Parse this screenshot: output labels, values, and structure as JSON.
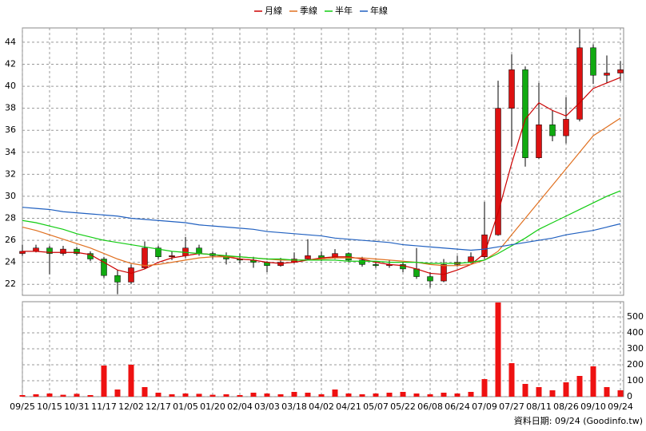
{
  "chart_data": [
    {
      "type": "candlestick",
      "categories": [
        "09/25",
        null,
        "10/15",
        null,
        "10/31",
        null,
        "11/17",
        null,
        "12/02",
        null,
        "12/17",
        null,
        "01/05",
        null,
        "01/20",
        null,
        "02/04",
        null,
        "03/03",
        null,
        "03/18",
        null,
        "04/02",
        null,
        "04/21",
        null,
        "05/07",
        null,
        "05/22",
        null,
        "06/08",
        null,
        "06/24",
        null,
        "07/09",
        null,
        "07/27",
        null,
        "08/11",
        null,
        "08/26",
        null,
        "09/10",
        null,
        "09/24"
      ],
      "open": [
        24.8,
        25.0,
        25.3,
        24.8,
        25.2,
        24.8,
        24.3,
        22.8,
        22.2,
        23.5,
        25.3,
        24.5,
        24.6,
        25.3,
        24.8,
        24.6,
        24.3,
        24.2,
        24.0,
        23.7,
        24.0,
        24.3,
        24.6,
        24.4,
        24.8,
        24.2,
        23.8,
        23.7,
        23.8,
        23.4,
        22.7,
        22.3,
        23.8,
        24.0,
        24.5,
        26.5,
        38.0,
        41.5,
        33.5,
        36.5,
        35.5,
        37.0,
        43.5,
        41.0,
        41.2
      ],
      "high": [
        25.6,
        25.6,
        25.5,
        25.5,
        25.4,
        25.0,
        24.5,
        23.3,
        23.8,
        25.9,
        25.5,
        25.0,
        26.3,
        25.6,
        25.0,
        24.9,
        24.8,
        24.5,
        24.1,
        24.4,
        24.9,
        26.1,
        25.0,
        25.2,
        24.9,
        24.5,
        24.1,
        24.2,
        24.0,
        25.3,
        23.1,
        24.3,
        24.6,
        24.9,
        29.5,
        40.5,
        42.9,
        41.8,
        40.3,
        37.8,
        39.0,
        45.2,
        43.8,
        42.8,
        42.3
      ],
      "low": [
        24.6,
        24.9,
        22.9,
        24.6,
        24.6,
        24.1,
        22.6,
        21.1,
        22.0,
        23.4,
        24.3,
        24.2,
        24.4,
        24.6,
        24.3,
        23.8,
        23.9,
        23.5,
        23.1,
        23.6,
        23.9,
        24.2,
        24.1,
        24.3,
        24.0,
        23.6,
        23.5,
        23.5,
        23.1,
        22.5,
        21.7,
        22.2,
        23.6,
        23.9,
        24.3,
        26.4,
        34.5,
        32.7,
        33.4,
        35.0,
        34.8,
        36.8,
        40.2,
        40.3,
        40.5
      ],
      "close": [
        25.0,
        25.3,
        24.8,
        25.2,
        24.8,
        24.3,
        22.8,
        22.2,
        23.5,
        25.3,
        24.5,
        24.6,
        25.3,
        24.8,
        24.6,
        24.3,
        24.2,
        24.0,
        23.7,
        24.0,
        24.3,
        24.6,
        24.4,
        24.8,
        24.2,
        23.8,
        23.7,
        23.8,
        23.4,
        22.7,
        22.3,
        23.8,
        24.0,
        24.5,
        26.5,
        38.0,
        41.5,
        33.5,
        36.5,
        35.5,
        37.0,
        43.5,
        41.0,
        41.2,
        41.5
      ],
      "up_color": "#dd1111",
      "down_color": "#11aa11",
      "series": [
        {
          "name": "月線",
          "color": "#cc0000",
          "values": [
            25.0,
            25.0,
            24.9,
            24.9,
            24.9,
            24.7,
            24.0,
            23.3,
            23.0,
            23.4,
            24.0,
            24.4,
            24.6,
            24.8,
            24.7,
            24.5,
            24.3,
            24.2,
            24.0,
            23.9,
            24.0,
            24.2,
            24.4,
            24.5,
            24.5,
            24.3,
            24.0,
            23.8,
            23.7,
            23.4,
            23.0,
            22.9,
            23.3,
            23.8,
            24.8,
            28.5,
            33.0,
            37.0,
            38.5,
            37.8,
            37.3,
            38.5,
            39.8,
            40.3,
            40.8
          ]
        },
        {
          "name": "季線",
          "color": "#e07020",
          "values": [
            27.2,
            26.9,
            26.5,
            26.1,
            25.7,
            25.3,
            24.8,
            24.3,
            23.9,
            23.7,
            23.8,
            24.0,
            24.2,
            24.4,
            24.5,
            24.5,
            24.5,
            24.4,
            24.3,
            24.2,
            24.2,
            24.2,
            24.3,
            24.4,
            24.4,
            24.4,
            24.3,
            24.2,
            24.1,
            24.0,
            23.8,
            23.7,
            23.7,
            23.8,
            24.2,
            25.0,
            26.5,
            28.0,
            29.5,
            31.0,
            32.5,
            34.0,
            35.5,
            36.3,
            37.1
          ]
        },
        {
          "name": "半年",
          "color": "#11cc11",
          "values": [
            27.8,
            27.6,
            27.3,
            27.0,
            26.6,
            26.3,
            26.0,
            25.8,
            25.6,
            25.4,
            25.2,
            25.0,
            24.9,
            24.8,
            24.7,
            24.6,
            24.5,
            24.4,
            24.3,
            24.3,
            24.2,
            24.2,
            24.2,
            24.2,
            24.1,
            24.1,
            24.1,
            24.0,
            24.0,
            24.0,
            23.9,
            23.9,
            23.9,
            24.0,
            24.2,
            24.8,
            25.5,
            26.2,
            27.0,
            27.6,
            28.2,
            28.8,
            29.4,
            30.0,
            30.5
          ]
        },
        {
          "name": "年線",
          "color": "#2060c0",
          "values": [
            29.0,
            28.9,
            28.8,
            28.6,
            28.5,
            28.4,
            28.3,
            28.2,
            28.0,
            27.9,
            27.8,
            27.7,
            27.6,
            27.4,
            27.3,
            27.2,
            27.1,
            27.0,
            26.8,
            26.7,
            26.6,
            26.5,
            26.4,
            26.2,
            26.1,
            26.0,
            25.9,
            25.8,
            25.6,
            25.5,
            25.4,
            25.3,
            25.2,
            25.1,
            25.2,
            25.4,
            25.6,
            25.8,
            26.0,
            26.2,
            26.5,
            26.7,
            26.9,
            27.2,
            27.5
          ]
        }
      ],
      "ylim": [
        21,
        45.3
      ],
      "yticks": [
        22,
        24,
        26,
        28,
        30,
        32,
        34,
        36,
        38,
        40,
        42,
        44
      ],
      "grid": true
    },
    {
      "type": "bar",
      "color": "#ee1111",
      "values": [
        10,
        15,
        20,
        12,
        18,
        10,
        195,
        45,
        200,
        60,
        25,
        15,
        20,
        18,
        12,
        15,
        10,
        25,
        20,
        15,
        30,
        25,
        15,
        45,
        20,
        15,
        20,
        25,
        30,
        20,
        15,
        25,
        20,
        30,
        110,
        590,
        210,
        80,
        60,
        40,
        90,
        130,
        190,
        60,
        40
      ],
      "ylim": [
        0,
        595
      ],
      "yticks": [
        0,
        100,
        200,
        300,
        400,
        500
      ],
      "grid": true
    }
  ],
  "footer": "資料日期: 09/24  (Goodinfo.tw)"
}
